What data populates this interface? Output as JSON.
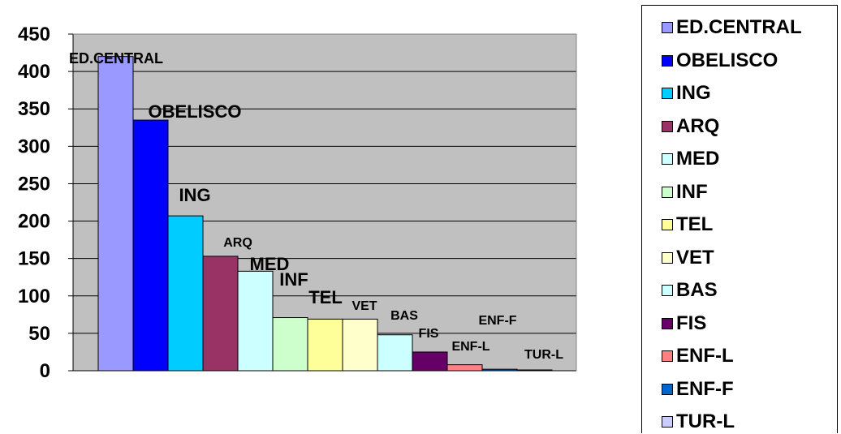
{
  "chart_data": {
    "type": "bar",
    "categories": [
      "ED.CENTRAL",
      "OBELISCO",
      "ING",
      "ARQ",
      "MED",
      "INF",
      "TEL",
      "VET",
      "BAS",
      "FIS",
      "ENF-L",
      "ENF-F",
      "TUR-L"
    ],
    "values": [
      420,
      335,
      207,
      153,
      133,
      71,
      69,
      69,
      48,
      25,
      8,
      2,
      1
    ],
    "colors": [
      "#9999ff",
      "#0000ff",
      "#00ccff",
      "#993366",
      "#ccffff",
      "#ccffcc",
      "#ffff99",
      "#ffffcc",
      "#ccffff",
      "#660066",
      "#ff8080",
      "#0066cc",
      "#ccccff"
    ],
    "data_labels": [
      "ED.CENTRAL",
      "OBELISCO",
      "ING",
      "ARQ",
      "MED",
      "INF",
      "TEL",
      "VET",
      "BAS",
      "FIS",
      "ENF-L",
      "ENF-F",
      "TUR-L"
    ],
    "yticks": [
      0,
      50,
      100,
      150,
      200,
      250,
      300,
      350,
      400,
      450
    ],
    "ylim": [
      0,
      450
    ],
    "plot_background": "#c0c0c0",
    "grid": true,
    "legend_position": "right",
    "title": "",
    "xlabel": "",
    "ylabel": ""
  }
}
